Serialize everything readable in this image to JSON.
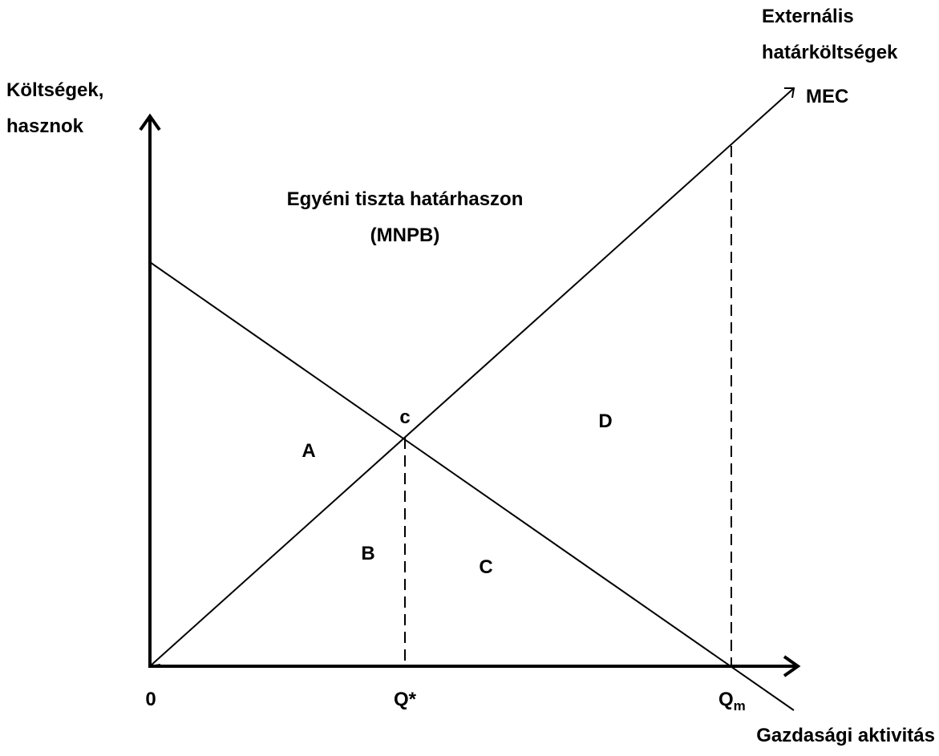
{
  "diagram": {
    "mec_label": [
      "Externális",
      "határköltségek",
      "MEC"
    ],
    "y_axis_label": [
      "Költségek,",
      "hasznok"
    ],
    "mnpb_label": [
      "Egyéni tiszta határhaszon",
      "(MNPB)"
    ],
    "point_label": "c",
    "areas": [
      "A",
      "B",
      "C",
      "D"
    ],
    "x_ticks": {
      "origin": "0",
      "q_star": "Q*",
      "q_m": "Q",
      "q_m_sub": "m"
    },
    "x_axis_label": "Gazdasági aktivitás"
  }
}
